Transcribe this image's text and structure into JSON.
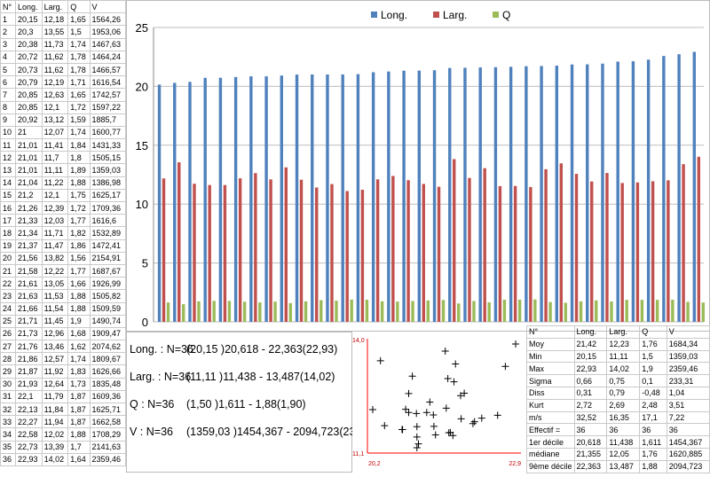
{
  "data_table": {
    "headers": [
      "N°",
      "Long.",
      "Larg.",
      "Q",
      "V"
    ],
    "rows": [
      [
        "1",
        "20,15",
        "12,18",
        "1,65",
        "1564,26"
      ],
      [
        "2",
        "20,3",
        "13,55",
        "1,5",
        "1953,06"
      ],
      [
        "3",
        "20,38",
        "11,73",
        "1,74",
        "1467,63"
      ],
      [
        "4",
        "20,72",
        "11,62",
        "1,78",
        "1464,24"
      ],
      [
        "5",
        "20,73",
        "11,62",
        "1,78",
        "1466,57"
      ],
      [
        "6",
        "20,79",
        "12,19",
        "1,71",
        "1616,54"
      ],
      [
        "7",
        "20,85",
        "12,63",
        "1,65",
        "1742,57"
      ],
      [
        "8",
        "20,85",
        "12,1",
        "1,72",
        "1597,22"
      ],
      [
        "9",
        "20,92",
        "13,12",
        "1,59",
        "1885,7"
      ],
      [
        "10",
        "21",
        "12,07",
        "1,74",
        "1600,77"
      ],
      [
        "11",
        "21,01",
        "11,41",
        "1,84",
        "1431,33"
      ],
      [
        "12",
        "21,01",
        "11,7",
        "1,8",
        "1505,15"
      ],
      [
        "13",
        "21,01",
        "11,11",
        "1,89",
        "1359,03"
      ],
      [
        "14",
        "21,04",
        "11,22",
        "1,88",
        "1386,98"
      ],
      [
        "15",
        "21,2",
        "12,1",
        "1,75",
        "1625,17"
      ],
      [
        "16",
        "21,26",
        "12,39",
        "1,72",
        "1709,36"
      ],
      [
        "17",
        "21,33",
        "12,03",
        "1,77",
        "1616,6"
      ],
      [
        "18",
        "21,34",
        "11,71",
        "1,82",
        "1532,89"
      ],
      [
        "19",
        "21,37",
        "11,47",
        "1,86",
        "1472,41"
      ],
      [
        "20",
        "21,56",
        "13,82",
        "1,56",
        "2154,91"
      ],
      [
        "21",
        "21,58",
        "12,22",
        "1,77",
        "1687,67"
      ],
      [
        "22",
        "21,61",
        "13,05",
        "1,66",
        "1926,99"
      ],
      [
        "23",
        "21,63",
        "11,53",
        "1,88",
        "1505,82"
      ],
      [
        "24",
        "21,66",
        "11,54",
        "1,88",
        "1509,59"
      ],
      [
        "25",
        "21,71",
        "11,45",
        "1,9",
        "1490,74"
      ],
      [
        "26",
        "21,73",
        "12,96",
        "1,68",
        "1909,47"
      ],
      [
        "27",
        "21,76",
        "13,46",
        "1,62",
        "2074,62"
      ],
      [
        "28",
        "21,86",
        "12,57",
        "1,74",
        "1809,67"
      ],
      [
        "29",
        "21,87",
        "11,92",
        "1,83",
        "1626,66"
      ],
      [
        "30",
        "21,93",
        "12,64",
        "1,73",
        "1835,48"
      ],
      [
        "31",
        "22,1",
        "11,79",
        "1,87",
        "1609,36"
      ],
      [
        "32",
        "22,13",
        "11,84",
        "1,87",
        "1625,71"
      ],
      [
        "33",
        "22,27",
        "11,94",
        "1,87",
        "1662,58"
      ],
      [
        "34",
        "22,58",
        "12,02",
        "1,88",
        "1708,29"
      ],
      [
        "35",
        "22,73",
        "13,39",
        "1,7",
        "2141,63"
      ],
      [
        "36",
        "22,93",
        "14,02",
        "1,64",
        "2359,46"
      ]
    ]
  },
  "chart_data": {
    "type": "bar",
    "series": [
      {
        "name": "Long.",
        "color": "#4f81bd",
        "values": [
          20.15,
          20.3,
          20.38,
          20.72,
          20.73,
          20.79,
          20.85,
          20.85,
          20.92,
          21,
          21.01,
          21.01,
          21.01,
          21.04,
          21.2,
          21.26,
          21.33,
          21.34,
          21.37,
          21.56,
          21.58,
          21.61,
          21.63,
          21.66,
          21.71,
          21.73,
          21.76,
          21.86,
          21.87,
          21.93,
          22.1,
          22.13,
          22.27,
          22.58,
          22.73,
          22.93
        ]
      },
      {
        "name": "Larg.",
        "color": "#c0504d",
        "values": [
          12.18,
          13.55,
          11.73,
          11.62,
          11.62,
          12.19,
          12.63,
          12.1,
          13.12,
          12.07,
          11.41,
          11.7,
          11.11,
          11.22,
          12.1,
          12.39,
          12.03,
          11.71,
          11.47,
          13.82,
          12.22,
          13.05,
          11.53,
          11.54,
          11.45,
          12.96,
          13.46,
          12.57,
          11.92,
          12.64,
          11.79,
          11.84,
          11.94,
          12.02,
          13.39,
          14.02
        ]
      },
      {
        "name": "Q",
        "color": "#9bbb59",
        "values": [
          1.65,
          1.5,
          1.74,
          1.78,
          1.78,
          1.71,
          1.65,
          1.72,
          1.59,
          1.74,
          1.84,
          1.8,
          1.89,
          1.88,
          1.75,
          1.72,
          1.77,
          1.82,
          1.86,
          1.56,
          1.77,
          1.66,
          1.88,
          1.88,
          1.9,
          1.68,
          1.62,
          1.74,
          1.83,
          1.73,
          1.87,
          1.87,
          1.87,
          1.88,
          1.7,
          1.64
        ]
      }
    ],
    "ylim": [
      0,
      25
    ],
    "yticks": [
      "0",
      "5",
      "10",
      "15",
      "20",
      "25"
    ],
    "legend": "top-center",
    "grid": true
  },
  "summary": [
    {
      "label": "Long. : N=36",
      "value": "(20,15 )20,618 - 22,363(22,93)"
    },
    {
      "label": "Larg. : N=36",
      "value": "(11,11 )11,438 - 13,487(14,02)"
    },
    {
      "label": "Q : N=36",
      "value": "(1,50 )1,611 - 1,88(1,90)"
    },
    {
      "label": "V : N=36",
      "value": "(1359,03 )1454,367 - 2094,723(2359,46)"
    }
  ],
  "scatter": {
    "xmin_label": "20,2",
    "xmax_label": "22,9",
    "ymin_label": "11,1",
    "ymax_label": "14,0",
    "xlim": [
      20.15,
      22.93
    ],
    "ylim": [
      11.11,
      14.02
    ],
    "axis_color": "#ff0000"
  },
  "stats": {
    "headers": [
      "N°",
      "Long.",
      "Larg.",
      "Q",
      "V"
    ],
    "rows": [
      [
        "Moy",
        "21,42",
        "12,23",
        "1,76",
        "1684,34"
      ],
      [
        "Min",
        "20,15",
        "11,11",
        "1,5",
        "1359,03"
      ],
      [
        "Max",
        "22,93",
        "14,02",
        "1,9",
        "2359,46"
      ],
      [
        "Sigma",
        "0,66",
        "0,75",
        "0,1",
        "233,31"
      ],
      [
        "Diss",
        "0,31",
        "0,79",
        "-0,48",
        "1,04"
      ],
      [
        "Kurt",
        "2,72",
        "2,69",
        "2,48",
        "3,51"
      ],
      [
        "m/s",
        "32,52",
        "16,35",
        "17,1",
        "7,22"
      ],
      [
        "Effectif =",
        "36",
        "36",
        "36",
        "36"
      ],
      [
        "1er décile",
        "20,618",
        "11,438",
        "1,611",
        "1454,367"
      ],
      [
        "médiane",
        "21,355",
        "12,05",
        "1,76",
        "1620,885"
      ],
      [
        "9ème décile",
        "22,363",
        "13,487",
        "1,88",
        "2094,723"
      ]
    ]
  }
}
